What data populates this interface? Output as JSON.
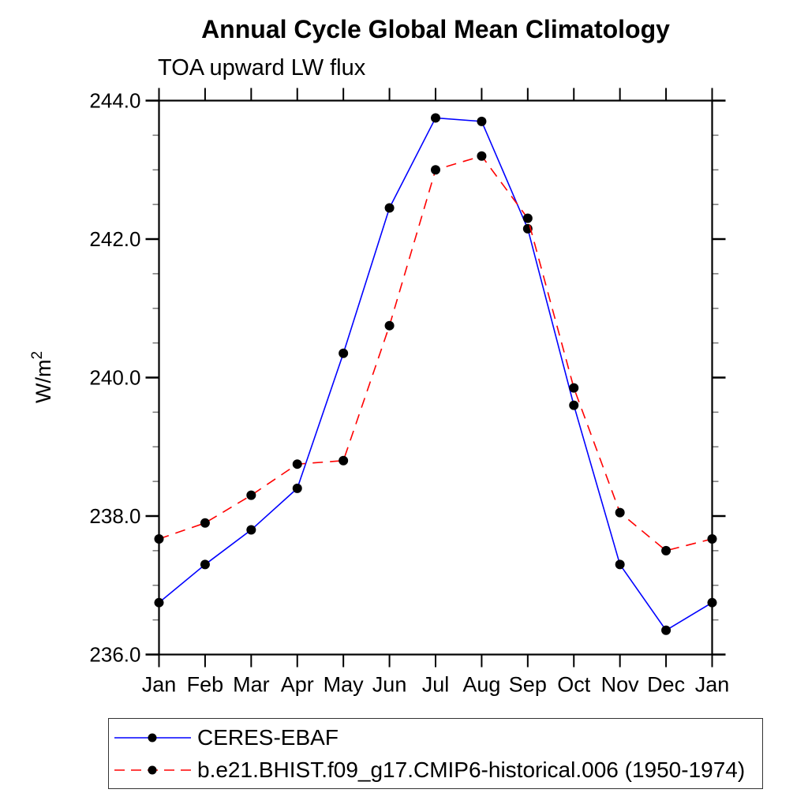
{
  "title": "Annual Cycle Global Mean Climatology",
  "subtitle": "TOA upward LW flux",
  "ylabel": {
    "base": "W/m",
    "sup": "2"
  },
  "colors": {
    "ceres_line": "#0000ff",
    "model_line": "#ff0000",
    "marker": "#000000",
    "axis": "#000000",
    "minor_tick": "#777777"
  },
  "chart_data": {
    "type": "line",
    "x_categories": [
      "Jan",
      "Feb",
      "Mar",
      "Apr",
      "May",
      "Jun",
      "Jul",
      "Aug",
      "Sep",
      "Oct",
      "Nov",
      "Dec",
      "Jan"
    ],
    "xlabel": "",
    "ylabel": "W/m2",
    "ylim": [
      236.0,
      244.0
    ],
    "y_major_ticks": [
      236.0,
      238.0,
      240.0,
      242.0,
      244.0
    ],
    "y_tick_labels": [
      "236.0",
      "238.0",
      "240.0",
      "242.0",
      "244.0"
    ],
    "y_minor_step": 0.5,
    "grid": false,
    "legend_position": "bottom-left",
    "series": [
      {
        "name": "CERES-EBAF",
        "color": "#0000ff",
        "style": "solid",
        "marker": "circle",
        "values": [
          236.75,
          237.3,
          237.8,
          238.4,
          240.35,
          242.45,
          243.75,
          243.7,
          242.15,
          239.6,
          237.3,
          236.35,
          236.75
        ]
      },
      {
        "name": "b.e21.BHIST.f09_g17.CMIP6-historical.006 (1950-1974)",
        "color": "#ff0000",
        "style": "dashed",
        "marker": "circle",
        "values": [
          237.67,
          237.9,
          238.3,
          238.75,
          238.8,
          240.75,
          243.0,
          243.2,
          242.3,
          239.85,
          238.05,
          237.5,
          237.67
        ]
      }
    ]
  }
}
